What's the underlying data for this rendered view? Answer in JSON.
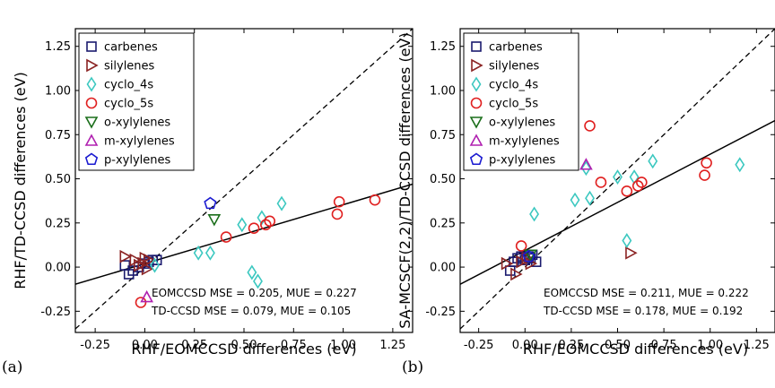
{
  "chart_data": [
    {
      "type": "scatter",
      "panel_label": "(a)",
      "xlabel": "RHF/EOMCCSD differences (eV)",
      "ylabel": "RHF/TD-CCSD differences (eV)",
      "xlim": [
        -0.35,
        1.35
      ],
      "ylim": [
        -0.37,
        1.35
      ],
      "xticks": [
        "-0.25",
        "0.00",
        "0.25",
        "0.50",
        "0.75",
        "1.00",
        "1.25"
      ],
      "yticks": [
        "-0.25",
        "0.00",
        "0.25",
        "0.50",
        "0.75",
        "1.00",
        "1.25"
      ],
      "legend_position": "top-left",
      "diagonal": {
        "style": "dashed",
        "slope": 1,
        "intercept": 0
      },
      "fit_line": {
        "style": "solid",
        "x": [
          -0.35,
          1.35
        ],
        "y": [
          -0.097,
          0.47
        ]
      },
      "annotations": [
        "EOMCCSD MSE = 0.205, MUE = 0.227",
        "TD-CCSD   MSE = 0.079, MUE = 0.105"
      ],
      "series": [
        {
          "name": "carbenes",
          "marker": "square",
          "color": "#1a1a6e",
          "x": [
            -0.1,
            -0.08,
            -0.06,
            -0.03,
            0.0,
            0.02,
            0.04,
            0.06
          ],
          "y": [
            0.01,
            -0.04,
            -0.02,
            0.0,
            0.02,
            0.03,
            0.04,
            0.04
          ]
        },
        {
          "name": "silylenes",
          "marker": "triangle-right",
          "color": "#8b2323",
          "x": [
            -0.1,
            -0.05,
            -0.03,
            -0.01,
            0.01,
            0.02,
            0.0
          ],
          "y": [
            0.06,
            0.04,
            0.01,
            0.02,
            -0.01,
            0.04,
            0.05
          ]
        },
        {
          "name": "cyclo_4s",
          "marker": "diamond",
          "color": "#3cc8c0",
          "x": [
            0.05,
            0.27,
            0.33,
            0.49,
            0.54,
            0.57,
            0.59,
            0.69
          ],
          "y": [
            0.01,
            0.08,
            0.08,
            0.24,
            -0.03,
            -0.08,
            0.28,
            0.36
          ]
        },
        {
          "name": "cyclo_5s",
          "marker": "circle",
          "color": "#e02020",
          "x": [
            -0.02,
            0.41,
            0.55,
            0.61,
            0.63,
            0.97,
            0.98,
            1.16
          ],
          "y": [
            -0.2,
            0.17,
            0.22,
            0.24,
            0.26,
            0.3,
            0.37,
            0.38
          ]
        },
        {
          "name": "o-xylylenes",
          "marker": "triangle-down",
          "color": "#1a6e1a",
          "x": [
            0.35
          ],
          "y": [
            0.27
          ]
        },
        {
          "name": "m-xylylenes",
          "marker": "triangle-up",
          "color": "#b020b0",
          "x": [
            0.01
          ],
          "y": [
            -0.17
          ]
        },
        {
          "name": "p-xylylenes",
          "marker": "pentagon",
          "color": "#1a1ad0",
          "x": [
            0.33
          ],
          "y": [
            0.36
          ]
        }
      ]
    },
    {
      "type": "scatter",
      "panel_label": "(b)",
      "xlabel": "RHF/EOMCCSD differences (eV)",
      "ylabel": "SA-MCSCF(2,2)/TD-CCSD differences (eV)",
      "xlim": [
        -0.35,
        1.35
      ],
      "ylim": [
        -0.37,
        1.35
      ],
      "xticks": [
        "-0.25",
        "0.00",
        "0.25",
        "0.50",
        "0.75",
        "1.00",
        "1.25"
      ],
      "yticks": [
        "-0.25",
        "0.00",
        "0.25",
        "0.50",
        "0.75",
        "1.00",
        "1.25"
      ],
      "legend_position": "top-left",
      "diagonal": {
        "style": "dashed",
        "slope": 1,
        "intercept": 0
      },
      "fit_line": {
        "style": "solid",
        "x": [
          -0.35,
          1.35
        ],
        "y": [
          -0.097,
          0.83
        ]
      },
      "annotations": [
        "EOMCCSD MSE = 0.211, MUE = 0.222",
        "TD-CCSD   MSE = 0.178, MUE = 0.192"
      ],
      "series": [
        {
          "name": "carbenes",
          "marker": "square",
          "color": "#1a1a6e",
          "x": [
            -0.08,
            -0.06,
            -0.04,
            -0.02,
            0.0,
            0.02,
            0.04,
            0.06,
            0.03
          ],
          "y": [
            -0.02,
            0.03,
            0.05,
            0.06,
            0.04,
            0.06,
            0.07,
            0.03,
            0.05
          ]
        },
        {
          "name": "silylenes",
          "marker": "triangle-right",
          "color": "#8b2323",
          "x": [
            -0.1,
            -0.05,
            -0.02,
            0.01,
            0.03,
            0.57
          ],
          "y": [
            0.02,
            -0.04,
            0.03,
            0.05,
            0.02,
            0.08
          ]
        },
        {
          "name": "cyclo_4s",
          "marker": "diamond",
          "color": "#3cc8c0",
          "x": [
            0.05,
            0.27,
            0.33,
            0.5,
            0.55,
            0.59,
            0.69,
            1.16,
            0.35
          ],
          "y": [
            0.3,
            0.38,
            0.56,
            0.51,
            0.15,
            0.51,
            0.6,
            0.58,
            0.39
          ]
        },
        {
          "name": "cyclo_5s",
          "marker": "circle",
          "color": "#e02020",
          "x": [
            -0.02,
            0.35,
            0.41,
            0.55,
            0.61,
            0.63,
            0.97,
            0.98
          ],
          "y": [
            0.12,
            0.8,
            0.48,
            0.43,
            0.46,
            0.48,
            0.52,
            0.59
          ]
        },
        {
          "name": "o-xylylenes",
          "marker": "triangle-down",
          "color": "#1a6e1a",
          "x": [
            0.03
          ],
          "y": [
            0.07
          ]
        },
        {
          "name": "m-xylylenes",
          "marker": "triangle-up",
          "color": "#b020b0",
          "x": [
            0.33
          ],
          "y": [
            0.58
          ]
        },
        {
          "name": "p-xylylenes",
          "marker": "pentagon",
          "color": "#1a1ad0",
          "x": [
            0.02
          ],
          "y": [
            0.06
          ]
        }
      ]
    }
  ]
}
